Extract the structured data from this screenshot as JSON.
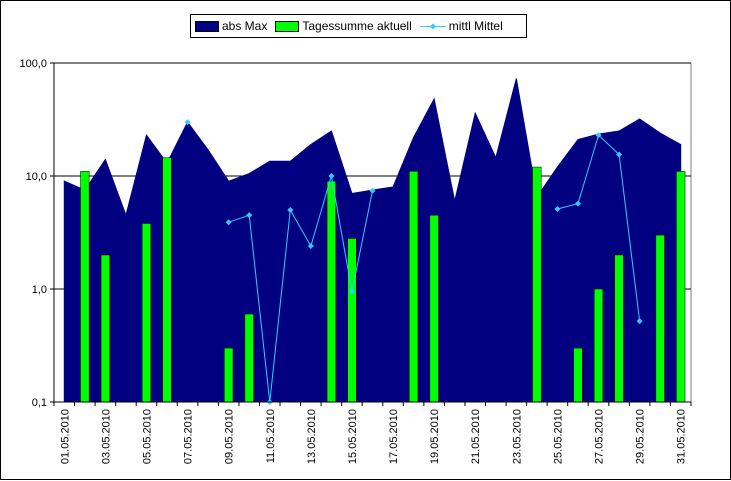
{
  "chart_data": {
    "type": "bar",
    "log_scale": true,
    "y_ticks": [
      "0,1",
      "1,0",
      "10,0",
      "100,0"
    ],
    "y_tick_values": [
      0.1,
      1,
      10,
      100
    ],
    "ylim": [
      0.1,
      100
    ],
    "gridlines": true,
    "legend_position": "top-center",
    "categories": [
      "01.05.2010",
      "02.05.2010",
      "03.05.2010",
      "04.05.2010",
      "05.05.2010",
      "06.05.2010",
      "07.05.2010",
      "08.05.2010",
      "09.05.2010",
      "10.05.2010",
      "11.05.2010",
      "12.05.2010",
      "13.05.2010",
      "14.05.2010",
      "15.05.2010",
      "16.05.2010",
      "17.05.2010",
      "18.05.2010",
      "19.05.2010",
      "20.05.2010",
      "21.05.2010",
      "22.05.2010",
      "23.05.2010",
      "24.05.2010",
      "25.05.2010",
      "26.05.2010",
      "27.05.2010",
      "28.05.2010",
      "29.05.2010",
      "30.05.2010",
      "31.05.2010"
    ],
    "x_tick_labels": [
      "01.05.2010",
      "03.05.2010",
      "05.05.2010",
      "07.05.2010",
      "09.05.2010",
      "11.05.2010",
      "13.05.2010",
      "15.05.2010",
      "17.05.2010",
      "19.05.2010",
      "21.05.2010",
      "23.05.2010",
      "25.05.2010",
      "27.05.2010",
      "29.05.2010",
      "31.05.2010"
    ],
    "series": [
      {
        "name": "abs Max",
        "type": "area",
        "color": "#000080",
        "values": [
          9,
          7.5,
          14,
          4.5,
          23,
          13,
          30,
          17,
          9,
          10.5,
          13.5,
          13.5,
          19,
          25,
          7,
          7.5,
          8,
          22,
          48,
          6,
          36,
          14.5,
          73,
          6.5,
          12,
          21,
          23.5,
          25,
          32,
          24,
          19
        ]
      },
      {
        "name": "Tagessumme aktuell",
        "type": "bar",
        "color": "#00ff00",
        "values": [
          null,
          11,
          2,
          null,
          3.8,
          14.5,
          null,
          null,
          0.3,
          0.6,
          null,
          null,
          null,
          9,
          2.8,
          null,
          null,
          11,
          4.5,
          null,
          null,
          null,
          null,
          12,
          null,
          0.3,
          1,
          2,
          null,
          3,
          11
        ]
      },
      {
        "name": "mittl Mittel",
        "type": "line",
        "color": "#33ccff",
        "values": [
          null,
          null,
          null,
          null,
          null,
          null,
          30,
          null,
          3.9,
          4.5,
          0.1,
          5,
          2.4,
          10,
          0.95,
          7.4,
          null,
          null,
          null,
          null,
          null,
          null,
          null,
          null,
          5.1,
          5.7,
          23,
          15.5,
          0.52,
          null,
          null
        ]
      }
    ]
  }
}
